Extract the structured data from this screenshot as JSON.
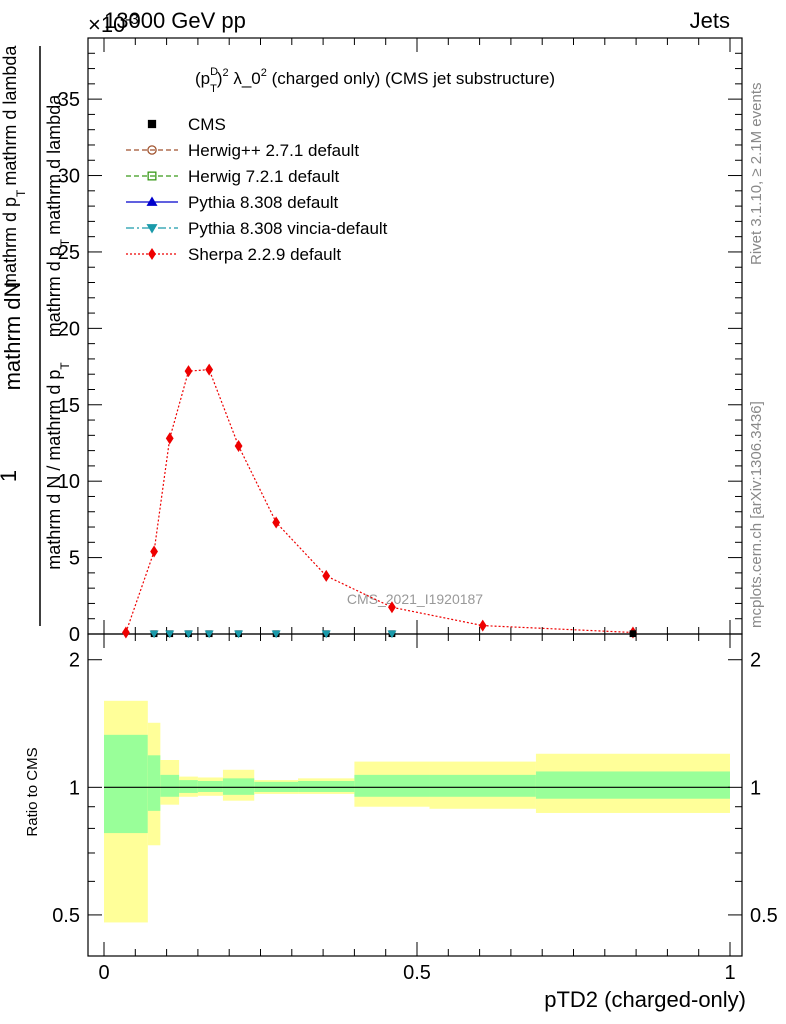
{
  "header": {
    "title_left": "13000 GeV pp",
    "title_right": "Jets",
    "exponent_label": "×10",
    "exponent_power": "-3"
  },
  "side_labels": {
    "rivet": "Rivet 3.1.10, ≥ 2.1M events",
    "mcplots": "mcplots.cern.ch [arXiv:1306.3436]"
  },
  "watermark": "CMS_2021_I1920187",
  "axis_labels": {
    "main_y_num": "mathrm dN",
    "main_y_num_line2": "mathrm d p",
    "main_y_num_sub": "T",
    "main_y_num_line3": "mathrm d lambda",
    "main_y_den": "mathrm d N / mathrm d p",
    "main_y_den_sub": "T",
    "main_y_den_line2": "mathrm d p",
    "main_y_den_line3": "mathrm d lambda",
    "main_y_one": "1",
    "ratio_y": "Ratio to CMS",
    "x": "pTD2 (charged-only)"
  },
  "legend": [
    {
      "label": "CMS",
      "color": "#000000",
      "marker": "square-filled",
      "line": "none"
    },
    {
      "label": "Herwig++ 2.7.1 default",
      "color": "#a0522d",
      "marker": "circle-open",
      "line": "dashed"
    },
    {
      "label": "Herwig 7.2.1 default",
      "color": "#3a9a1a",
      "marker": "square-open",
      "line": "dashed"
    },
    {
      "label": "Pythia 8.308 default",
      "color": "#0000cc",
      "marker": "triangle-up",
      "line": "solid"
    },
    {
      "label": "Pythia 8.308 vincia-default",
      "color": "#1a9aaa",
      "marker": "triangle-down",
      "line": "dashdot"
    },
    {
      "label": "Sherpa 2.2.9 default",
      "color": "#ee0000",
      "marker": "diamond",
      "line": "dotted"
    }
  ],
  "chart_data": [
    {
      "type": "line",
      "panel": "main",
      "title_parts": {
        "p": "(p",
        "sup_D": "D",
        "sub_T": "T",
        "close": ")",
        "sup2": "2",
        "rest": " λ_0",
        "sup2b": "2",
        "tail": " (charged only) (CMS jet substructure)"
      },
      "xlim": [
        0,
        1
      ],
      "ylim": [
        0,
        39
      ],
      "y_scale_factor": "1e-3",
      "y_ticks": [
        0,
        5,
        10,
        15,
        20,
        25,
        30,
        35
      ],
      "y_tick_labels": [
        "0",
        "5",
        "10",
        "15",
        "20",
        "25",
        "30",
        "35"
      ],
      "series": [
        {
          "name": "Sherpa 2.2.9 default",
          "color": "#ee0000",
          "x": [
            0.035,
            0.08,
            0.105,
            0.135,
            0.168,
            0.215,
            0.275,
            0.355,
            0.46,
            0.605,
            0.845
          ],
          "values": [
            0.1,
            5.4,
            12.8,
            17.2,
            17.3,
            12.3,
            7.3,
            3.8,
            1.75,
            0.55,
            0.1
          ]
        },
        {
          "name": "CMS",
          "color": "#000000",
          "x": [
            0.08,
            0.105,
            0.135,
            0.168,
            0.215,
            0.275,
            0.355,
            0.46,
            0.845
          ],
          "values": [
            0.02,
            0.02,
            0.02,
            0.02,
            0.02,
            0.02,
            0.02,
            0.02,
            0.02
          ]
        },
        {
          "name": "Pythia 8.308 vincia-default",
          "color": "#1a9aaa",
          "x": [
            0.08,
            0.105,
            0.135,
            0.168,
            0.215,
            0.275,
            0.355,
            0.46
          ],
          "values": [
            0.02,
            0.02,
            0.02,
            0.02,
            0.02,
            0.02,
            0.02,
            0.02
          ]
        }
      ]
    },
    {
      "type": "area",
      "panel": "ratio",
      "xlim": [
        0,
        1
      ],
      "ylim": [
        0.4,
        2.3
      ],
      "y_scale": "log",
      "y_ticks": [
        0.5,
        1,
        2
      ],
      "y_tick_labels": [
        "0.5",
        "1",
        "2"
      ],
      "x_ticks": [
        0,
        0.5,
        1
      ],
      "x_tick_labels": [
        "0",
        "0.5",
        "1"
      ],
      "reference_line": 1,
      "bin_edges": [
        0,
        0.07,
        0.09,
        0.12,
        0.15,
        0.19,
        0.24,
        0.31,
        0.4,
        0.52,
        0.69,
        1.0
      ],
      "stat_band": {
        "color": "#99ff99",
        "low": [
          0.78,
          0.88,
          0.95,
          0.97,
          0.975,
          0.96,
          0.975,
          0.975,
          0.95,
          0.95,
          0.94
        ],
        "high": [
          1.33,
          1.19,
          1.07,
          1.04,
          1.035,
          1.05,
          1.03,
          1.035,
          1.07,
          1.07,
          1.09
        ]
      },
      "syst_band": {
        "color": "#ffff99",
        "low": [
          0.48,
          0.73,
          0.91,
          0.95,
          0.955,
          0.93,
          0.965,
          0.965,
          0.9,
          0.89,
          0.87
        ],
        "high": [
          1.6,
          1.42,
          1.16,
          1.06,
          1.055,
          1.1,
          1.04,
          1.05,
          1.15,
          1.15,
          1.2
        ]
      }
    }
  ]
}
